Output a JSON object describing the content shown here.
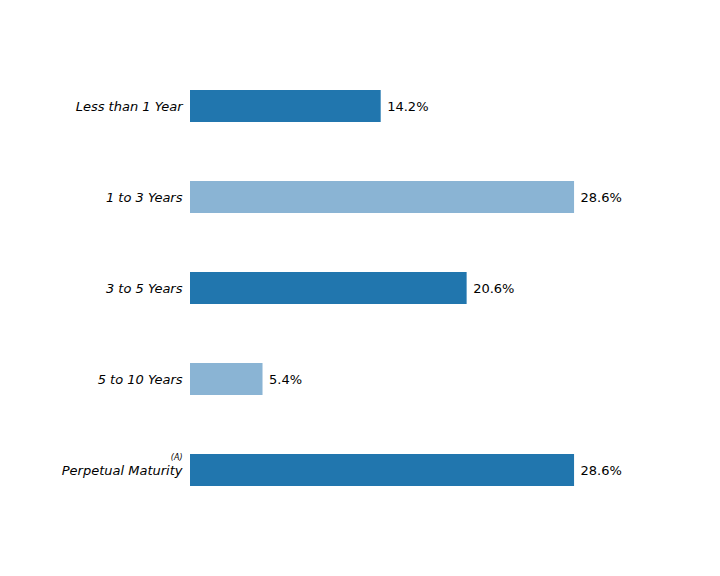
{
  "chart_data": {
    "type": "bar",
    "orientation": "horizontal",
    "categories": [
      "Less than 1 Year",
      "1 to 3 Years",
      "3 to 5 Years",
      "5 to 10 Years",
      "Perpetual Maturity"
    ],
    "values": [
      14.2,
      28.6,
      20.6,
      5.4,
      28.6
    ],
    "value_labels": [
      "14.2%",
      "28.6%",
      "20.6%",
      "5.4%",
      "28.6%"
    ],
    "colors": [
      "#2176ae",
      "#8ab4d4",
      "#2176ae",
      "#8ab4d4",
      "#2176ae"
    ],
    "xlim": [
      0,
      35
    ],
    "data_labels": true,
    "tick_labels": "y",
    "grid": false,
    "annotations": [
      {
        "text": "(A)",
        "category": "Perpetual Maturity"
      }
    ]
  }
}
